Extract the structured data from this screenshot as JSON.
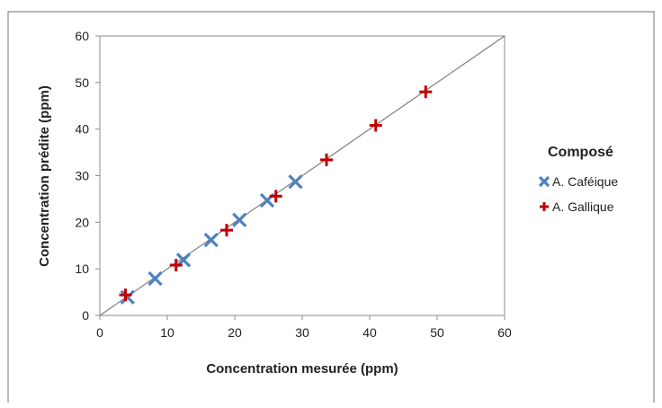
{
  "chart_data": {
    "type": "scatter",
    "title": "",
    "xlabel": "Concentration mesurée (ppm)",
    "ylabel": "Concentration prédite (ppm)",
    "xlim": [
      0,
      60
    ],
    "ylim": [
      0,
      60
    ],
    "xticks": [
      "0",
      "10",
      "20",
      "30",
      "40",
      "50",
      "60"
    ],
    "yticks": [
      "0",
      "10",
      "20",
      "30",
      "40",
      "50",
      "60"
    ],
    "grid": false,
    "legend_title": "Composé",
    "legend_position": "right",
    "reference_line": {
      "x": [
        0,
        60
      ],
      "y": [
        0,
        60
      ]
    },
    "series": [
      {
        "name": "A. Caféique",
        "marker": "x",
        "color": "#4F81BD",
        "points": [
          [
            4.1,
            3.9
          ],
          [
            8.2,
            7.9
          ],
          [
            12.4,
            11.9
          ],
          [
            16.5,
            16.2
          ],
          [
            20.7,
            20.5
          ],
          [
            24.8,
            24.7
          ],
          [
            29.0,
            28.7
          ]
        ]
      },
      {
        "name": "A. Gallique",
        "marker": "plus",
        "color": "#C00000",
        "points": [
          [
            3.8,
            4.4
          ],
          [
            11.3,
            10.8
          ],
          [
            18.8,
            18.3
          ],
          [
            26.1,
            25.6
          ],
          [
            33.6,
            33.4
          ],
          [
            40.9,
            40.8
          ],
          [
            48.3,
            48.0
          ]
        ]
      }
    ]
  }
}
